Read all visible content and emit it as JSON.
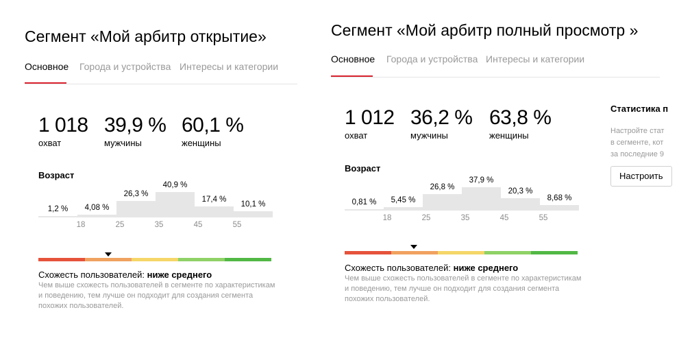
{
  "left": {
    "title": "Сегмент «Мой арбитр открытие»",
    "tabs": [
      "Основное",
      "Города и устройства",
      "Интересы и категории"
    ],
    "active_tab": 0,
    "stats": [
      {
        "value": "1 018",
        "label": "охват"
      },
      {
        "value": "39,9 %",
        "label": "мужчины"
      },
      {
        "value": "60,1 %",
        "label": "женщины"
      }
    ],
    "age": {
      "title": "Возраст",
      "bars": [
        {
          "label": "1,2 %",
          "value": 1.2
        },
        {
          "label": "4,08 %",
          "value": 4.08
        },
        {
          "label": "26,3 %",
          "value": 26.3
        },
        {
          "label": "40,9 %",
          "value": 40.9
        },
        {
          "label": "17,4 %",
          "value": 17.4
        },
        {
          "label": "10,1 %",
          "value": 10.1
        }
      ],
      "ticks": [
        "18",
        "25",
        "35",
        "45",
        "55"
      ]
    },
    "similarity": {
      "label": "Схожесть пользователей: ",
      "value": "ниже среднего",
      "description": "Чем выше схожесть пользователей в сегменте по характеристикам и поведению, тем лучше он подходит для создания сегмента похожих пользователей.",
      "level": 0.3
    }
  },
  "right": {
    "title": "Сегмент «Мой арбитр полный просмотр »",
    "tabs": [
      "Основное",
      "Города и устройства",
      "Интересы и категории"
    ],
    "active_tab": 0,
    "stats": [
      {
        "value": "1 012",
        "label": "охват"
      },
      {
        "value": "36,2 %",
        "label": "мужчины"
      },
      {
        "value": "63,8 %",
        "label": "женщины"
      }
    ],
    "age": {
      "title": "Возраст",
      "bars": [
        {
          "label": "0,81 %",
          "value": 0.81
        },
        {
          "label": "5,45 %",
          "value": 5.45
        },
        {
          "label": "26,8 %",
          "value": 26.8
        },
        {
          "label": "37,9 %",
          "value": 37.9
        },
        {
          "label": "20,3 %",
          "value": 20.3
        },
        {
          "label": "8,68 %",
          "value": 8.68
        }
      ],
      "ticks": [
        "18",
        "25",
        "35",
        "45",
        "55"
      ]
    },
    "similarity": {
      "label": "Схожесть пользователей: ",
      "value": "ниже среднего",
      "description": "Чем выше схожесть пользователей в сегменте по характеристикам и поведению, тем лучше он подходит для создания сегмента похожих пользователей.",
      "level": 0.3
    },
    "side": {
      "title": "Статистика п",
      "description_lines": [
        "Настройте стат",
        "в сегменте, кот",
        "за последние 9"
      ],
      "button": "Настроить"
    }
  },
  "colors": {
    "tab_underline": "#d9232e",
    "similarity_scale": [
      "#e5533b",
      "#f0a260",
      "#f5d668",
      "#8fd166",
      "#52b845"
    ],
    "bar_fill": "#e6e6e6"
  }
}
